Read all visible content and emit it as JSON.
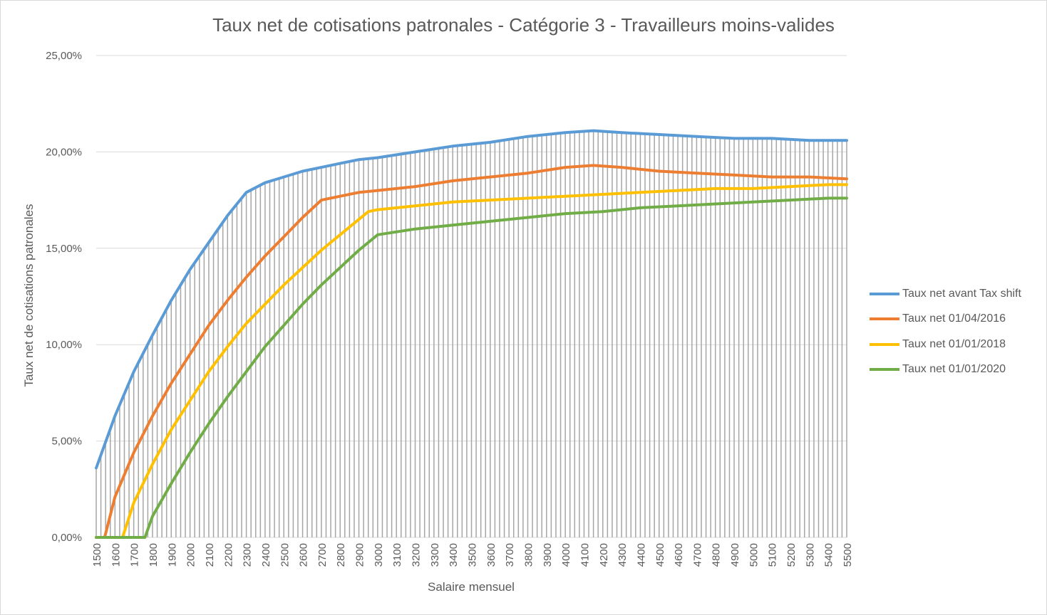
{
  "chart_data": {
    "type": "line",
    "title": "Taux net de cotisations patronales - Catégorie 3 - Travailleurs moins-valides",
    "xlabel": "Salaire mensuel",
    "ylabel": "Taux net de cotisations patronales",
    "xlim": [
      1500,
      5500
    ],
    "ylim": [
      0,
      0.25
    ],
    "x_ticks": [
      1500,
      1600,
      1700,
      1800,
      1900,
      2000,
      2100,
      2200,
      2300,
      2400,
      2500,
      2600,
      2700,
      2800,
      2900,
      3000,
      3100,
      3200,
      3300,
      3400,
      3500,
      3600,
      3700,
      3800,
      3900,
      4000,
      4100,
      4200,
      4300,
      4400,
      4500,
      4600,
      4700,
      4800,
      4900,
      5000,
      5100,
      5200,
      5300,
      5400,
      5500
    ],
    "y_ticks": [
      "0,00%",
      "5,00%",
      "10,00%",
      "15,00%",
      "20,00%",
      "25,00%"
    ],
    "y_tick_values": [
      0,
      0.05,
      0.1,
      0.15,
      0.2,
      0.25
    ],
    "drop_lines": true,
    "grid": "horizontal",
    "legend_position": "right",
    "series": [
      {
        "name": "Taux net avant Tax shift",
        "color": "#5b9bd5",
        "x": [
          1500,
          1600,
          1700,
          1800,
          1900,
          2000,
          2100,
          2200,
          2300,
          2400,
          2500,
          2600,
          2700,
          2800,
          2900,
          3000,
          3200,
          3400,
          3600,
          3800,
          4000,
          4150,
          4300,
          4500,
          4700,
          4900,
          5100,
          5300,
          5500
        ],
        "y": [
          0.036,
          0.063,
          0.086,
          0.105,
          0.123,
          0.139,
          0.153,
          0.167,
          0.179,
          0.184,
          0.187,
          0.19,
          0.192,
          0.194,
          0.196,
          0.197,
          0.2,
          0.203,
          0.205,
          0.208,
          0.21,
          0.211,
          0.21,
          0.209,
          0.208,
          0.207,
          0.207,
          0.206,
          0.206
        ]
      },
      {
        "name": "Taux net 01/04/2016",
        "color": "#ed7d31",
        "x": [
          1500,
          1545,
          1600,
          1700,
          1800,
          1900,
          2000,
          2100,
          2200,
          2300,
          2400,
          2500,
          2600,
          2700,
          2800,
          2900,
          3000,
          3200,
          3400,
          3600,
          3800,
          4000,
          4150,
          4300,
          4500,
          4700,
          4900,
          5100,
          5300,
          5500
        ],
        "y": [
          0,
          0,
          0.021,
          0.044,
          0.063,
          0.08,
          0.095,
          0.11,
          0.123,
          0.135,
          0.146,
          0.156,
          0.166,
          0.175,
          0.177,
          0.179,
          0.18,
          0.182,
          0.185,
          0.187,
          0.189,
          0.192,
          0.193,
          0.192,
          0.19,
          0.189,
          0.188,
          0.187,
          0.187,
          0.186
        ]
      },
      {
        "name": "Taux net 01/01/2018",
        "color": "#ffc000",
        "x": [
          1500,
          1640,
          1700,
          1800,
          1900,
          2000,
          2100,
          2200,
          2300,
          2400,
          2500,
          2600,
          2700,
          2800,
          2900,
          2950,
          3000,
          3200,
          3400,
          3600,
          3800,
          4000,
          4200,
          4400,
          4600,
          4800,
          5000,
          5200,
          5400,
          5500
        ],
        "y": [
          0,
          0,
          0.018,
          0.038,
          0.056,
          0.071,
          0.086,
          0.099,
          0.111,
          0.121,
          0.131,
          0.14,
          0.149,
          0.157,
          0.165,
          0.169,
          0.17,
          0.172,
          0.174,
          0.175,
          0.176,
          0.177,
          0.178,
          0.179,
          0.18,
          0.181,
          0.181,
          0.182,
          0.183,
          0.183
        ]
      },
      {
        "name": "Taux net 01/01/2020",
        "color": "#70ad47",
        "x": [
          1500,
          1760,
          1800,
          1900,
          2000,
          2100,
          2200,
          2300,
          2400,
          2500,
          2600,
          2700,
          2800,
          2900,
          3000,
          3200,
          3400,
          3600,
          3800,
          4000,
          4200,
          4400,
          4600,
          4800,
          5000,
          5200,
          5400,
          5500
        ],
        "y": [
          0,
          0,
          0.011,
          0.028,
          0.044,
          0.059,
          0.073,
          0.086,
          0.099,
          0.11,
          0.121,
          0.131,
          0.14,
          0.149,
          0.157,
          0.16,
          0.162,
          0.164,
          0.166,
          0.168,
          0.169,
          0.171,
          0.172,
          0.173,
          0.174,
          0.175,
          0.176,
          0.176
        ]
      }
    ]
  }
}
